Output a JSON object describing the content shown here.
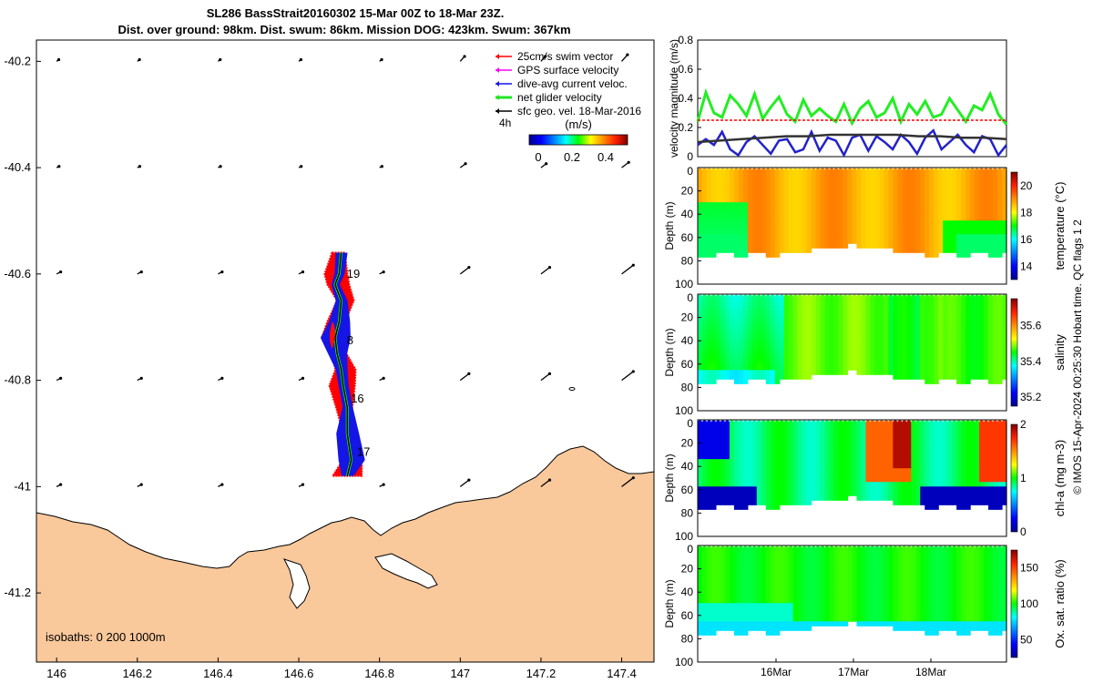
{
  "title_line1": "SL286 BassStrait20160302 15-Mar 00Z to 18-Mar 23Z.",
  "title_line2": "Dist. over ground: 98km. Dist. swum: 86km. Mission DOG: 423km. Swum: 367km",
  "copyright": "© IMOS 15-Apr-2024 00:25:30 Hobart time. QC flags 1  2",
  "colors": {
    "land": "#f9c89b",
    "swim_vector": "#ff0000",
    "dive_avg": "#1515e6",
    "net_glider": "#22e522",
    "sfc_geo": "#000000",
    "gps": "#ff00ff",
    "green_trace": "#22ee22",
    "blue_trace": "#2222cc"
  },
  "chart_data": [
    {
      "type": "scatter",
      "name": "map",
      "xlim": [
        145.95,
        147.48
      ],
      "ylim": [
        -41.33,
        -40.16
      ],
      "x_ticks": [
        146,
        146.2,
        146.4,
        146.6,
        146.8,
        147,
        147.2,
        147.4
      ],
      "y_ticks": [
        -40.2,
        -40.4,
        -40.6,
        -40.8,
        -41,
        -41.2
      ],
      "x_tick_labels": [
        "146",
        "146.2",
        "146.4",
        "146.6",
        "146.8",
        "147",
        "147.2",
        "147.4"
      ],
      "y_tick_labels": [
        "-40.2",
        "-40.4",
        "-40.6",
        "-40.8",
        "-41",
        "-41.2"
      ],
      "legend": [
        {
          "label": "25cm/s swim vector",
          "color": "#ff0000"
        },
        {
          "label": "GPS surface velocity",
          "color": "#ff00ff"
        },
        {
          "label": "dive-avg current veloc.",
          "color": "#1515e6"
        },
        {
          "label": "net glider velocity",
          "color": "#22e522"
        },
        {
          "label": "sfc geo. vel. 18-Mar-2016",
          "color": "#000000"
        }
      ],
      "legend_extra": "4h",
      "colorbar_label": "(m/s)",
      "colorbar_ticks": [
        "0",
        "0.2",
        "0.4"
      ],
      "isobath_text": "isobaths: 0   200  1000m",
      "track_day_labels": [
        {
          "label": "19",
          "lon": 146.71,
          "lat": -40.6
        },
        {
          "label": "8",
          "lon": 146.71,
          "lat": -40.725
        },
        {
          "label": "16",
          "lon": 146.72,
          "lat": -40.835
        },
        {
          "label": "17",
          "lon": 146.735,
          "lat": -40.935
        }
      ],
      "track": [
        [
          146.705,
          -40.56
        ],
        [
          146.7,
          -40.6
        ],
        [
          146.69,
          -40.62
        ],
        [
          146.705,
          -40.65
        ],
        [
          146.7,
          -40.69
        ],
        [
          146.69,
          -40.72
        ],
        [
          146.695,
          -40.75
        ],
        [
          146.705,
          -40.78
        ],
        [
          146.71,
          -40.81
        ],
        [
          146.72,
          -40.85
        ],
        [
          146.72,
          -40.9
        ],
        [
          146.73,
          -40.95
        ],
        [
          146.72,
          -40.98
        ]
      ],
      "geo_vector_grid": {
        "lons": [
          146.0,
          146.2,
          146.4,
          146.6,
          146.8,
          147.0,
          147.2,
          147.4
        ],
        "lats": [
          -40.2,
          -40.4,
          -40.6,
          -40.8,
          -41.0
        ]
      }
    },
    {
      "type": "line",
      "name": "velocity",
      "ylabel": "velocity magnitude (m/s)",
      "ylim": [
        0,
        0.8
      ],
      "y_ticks": [
        0,
        0.2,
        0.4,
        0.6,
        0.8
      ],
      "x_range_days": [
        "15-Mar",
        "18-Mar 23Z"
      ],
      "series": [
        {
          "name": "net glider velocity",
          "color": "#22ee22",
          "values": [
            0.24,
            0.44,
            0.3,
            0.27,
            0.42,
            0.36,
            0.28,
            0.43,
            0.26,
            0.34,
            0.41,
            0.29,
            0.24,
            0.39,
            0.28,
            0.33,
            0.28,
            0.24,
            0.36,
            0.23,
            0.33,
            0.38,
            0.27,
            0.3,
            0.4,
            0.24,
            0.36,
            0.29,
            0.38,
            0.27,
            0.29,
            0.4,
            0.32,
            0.24,
            0.35,
            0.32,
            0.43,
            0.29,
            0.22
          ]
        },
        {
          "name": "dive-avg current veloc.",
          "color": "#2222cc",
          "values": [
            0.08,
            0.12,
            0.08,
            0.17,
            0.05,
            0.01,
            0.1,
            0.14,
            0.08,
            0.02,
            0.11,
            0.12,
            0.03,
            0.05,
            0.17,
            0.04,
            0.13,
            0.11,
            0.01,
            0.13,
            0.15,
            0.04,
            0.14,
            0.1,
            0.05,
            0.15,
            0.1,
            0.02,
            0.13,
            0.18,
            0.05,
            0.1,
            0.15,
            0.08,
            0.03,
            0.14,
            0.12,
            0.01,
            0.08
          ]
        },
        {
          "name": "sfc geo. vel. 18-Mar-2016",
          "color": "#333333",
          "values": [
            0.1,
            0.11,
            0.12,
            0.13,
            0.14,
            0.14,
            0.15,
            0.15,
            0.15,
            0.15,
            0.14,
            0.14,
            0.13,
            0.13,
            0.12
          ]
        },
        {
          "name": "25cm/s swim vector",
          "color": "#ff0000",
          "values": [
            0.25,
            0.25
          ]
        }
      ]
    },
    {
      "type": "heatmap",
      "name": "temperature",
      "ylabel": "Depth (m)",
      "clabel": "temperature (°C)",
      "ylim": [
        100,
        0
      ],
      "y_ticks": [
        20,
        40,
        60,
        80,
        100
      ],
      "cticks": [
        "14",
        "16",
        "18",
        "20"
      ],
      "crange": [
        13,
        21
      ]
    },
    {
      "type": "heatmap",
      "name": "salinity",
      "ylabel": "Depth (m)",
      "clabel": "salinity",
      "ylim": [
        100,
        0
      ],
      "y_ticks": [
        20,
        40,
        60,
        80,
        100
      ],
      "cticks": [
        "35.2",
        "35.4",
        "35.6"
      ],
      "crange": [
        35.15,
        35.75
      ]
    },
    {
      "type": "heatmap",
      "name": "chl",
      "ylabel": "Depth (m)",
      "clabel": "chl-a (mg m-3)",
      "ylim": [
        100,
        0
      ],
      "y_ticks": [
        20,
        40,
        60,
        80,
        100
      ],
      "cticks": [
        "0",
        "1",
        "2"
      ],
      "crange": [
        0,
        2
      ]
    },
    {
      "type": "heatmap",
      "name": "oxygen",
      "ylabel": "Depth (m)",
      "clabel": "Ox. sat. ratio (%)",
      "ylim": [
        100,
        0
      ],
      "y_ticks": [
        20,
        40,
        60,
        80,
        100
      ],
      "cticks": [
        "50",
        "100",
        "150"
      ],
      "crange": [
        25,
        175
      ],
      "x_tick_labels": [
        "16Mar",
        "17Mar",
        "18Mar"
      ]
    }
  ]
}
